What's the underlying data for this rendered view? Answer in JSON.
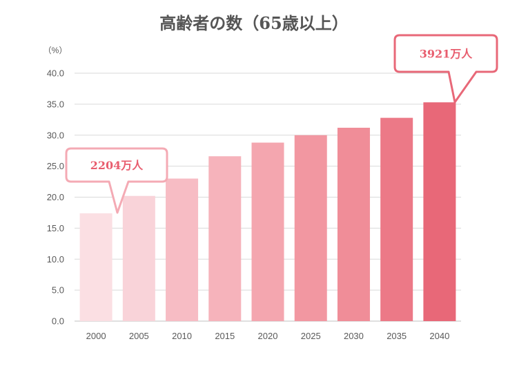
{
  "chart_data": {
    "type": "bar",
    "title": "高齢者の数（65歳以上）",
    "unit_label": "（%）",
    "categories": [
      "2000",
      "2005",
      "2010",
      "2015",
      "2020",
      "2025",
      "2030",
      "2035",
      "2040"
    ],
    "values": [
      17.4,
      20.2,
      23.0,
      26.6,
      28.8,
      30.0,
      31.2,
      32.8,
      35.3
    ],
    "ylim": [
      0,
      40
    ],
    "yticks": [
      "0.0",
      "5.0",
      "10.0",
      "15.0",
      "20.0",
      "25.0",
      "30.0",
      "35.0",
      "40.0"
    ],
    "grid": true,
    "bar_colors": [
      "#fbdfe3",
      "#f9d3d9",
      "#f7bcc4",
      "#f6b3bb",
      "#f4a6af",
      "#f297a1",
      "#f08d98",
      "#ec7987",
      "#e86878"
    ],
    "callouts": [
      {
        "text": "2204万人",
        "category": "2000",
        "color": "#f4aab4",
        "text_color": "#e85d6e"
      },
      {
        "text": "3921万人",
        "category": "2040",
        "color": "#e86878",
        "text_color": "#e85d6e"
      }
    ]
  }
}
